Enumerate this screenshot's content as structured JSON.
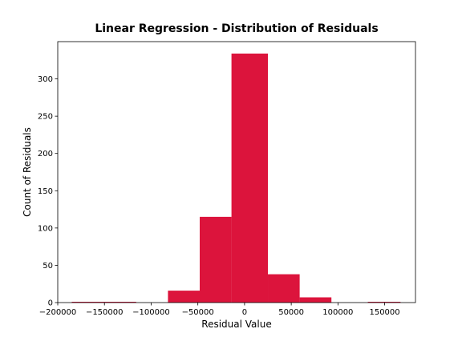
{
  "chart_data": {
    "type": "bar",
    "title": "Linear Regression - Distribution of Residuals",
    "xlabel": "Residual Value",
    "ylabel": "Count of Residuals",
    "bar_color": "#dc143c",
    "xlim": [
      -200000,
      183000
    ],
    "ylim": [
      0,
      350
    ],
    "xticks": [
      -200000,
      -150000,
      -100000,
      -50000,
      0,
      50000,
      100000,
      150000
    ],
    "xtick_labels": [
      "−200000",
      "−150000",
      "−100000",
      "−50000",
      "0",
      "50000",
      "100000",
      "150000"
    ],
    "yticks": [
      0,
      50,
      100,
      150,
      200,
      250,
      300
    ],
    "ytick_labels": [
      "0",
      "50",
      "100",
      "150",
      "200",
      "250",
      "300"
    ],
    "grid": false,
    "bins": [
      {
        "x0": -185000,
        "x1": -150000,
        "count": 1
      },
      {
        "x0": -150000,
        "x1": -116000,
        "count": 1
      },
      {
        "x0": -116000,
        "x1": -82000,
        "count": 0
      },
      {
        "x0": -82000,
        "x1": -48000,
        "count": 16
      },
      {
        "x0": -48000,
        "x1": -14000,
        "count": 115
      },
      {
        "x0": -14000,
        "x1": 25000,
        "count": 334
      },
      {
        "x0": 25000,
        "x1": 59000,
        "count": 38
      },
      {
        "x0": 59000,
        "x1": 93000,
        "count": 7
      },
      {
        "x0": 93000,
        "x1": 132000,
        "count": 0
      },
      {
        "x0": 132000,
        "x1": 167000,
        "count": 1
      }
    ]
  }
}
